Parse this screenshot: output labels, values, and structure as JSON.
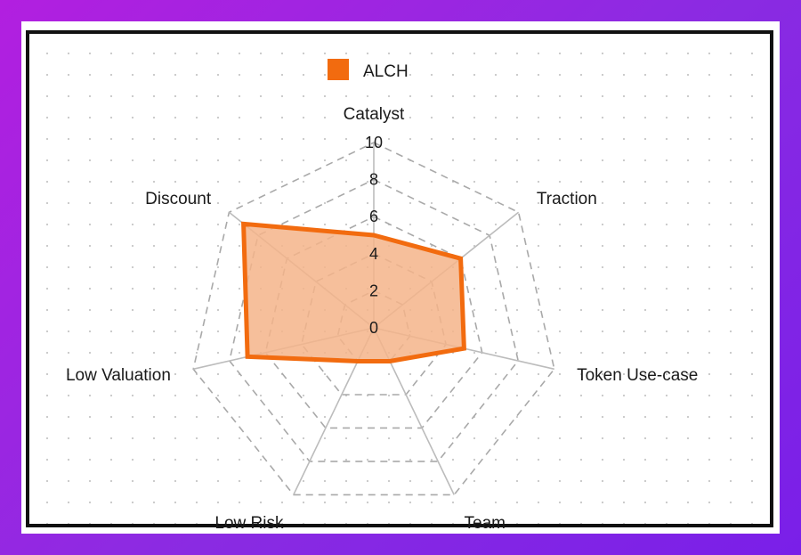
{
  "chart_data": {
    "type": "radar",
    "axes": [
      "Catalyst",
      "Traction",
      "Token Use-case",
      "Team",
      "Low Risk",
      "Low Valuation",
      "Discount"
    ],
    "range": [
      0,
      10
    ],
    "ticks": [
      "0",
      "2",
      "4",
      "6",
      "8",
      "10"
    ],
    "series": [
      {
        "name": "ALCH",
        "values": [
          5,
          6,
          5,
          2,
          2,
          7,
          9
        ],
        "color": "#f26b0f",
        "fill": "#f5b48a"
      }
    ],
    "legend_position": "top",
    "grid": "dashed"
  }
}
